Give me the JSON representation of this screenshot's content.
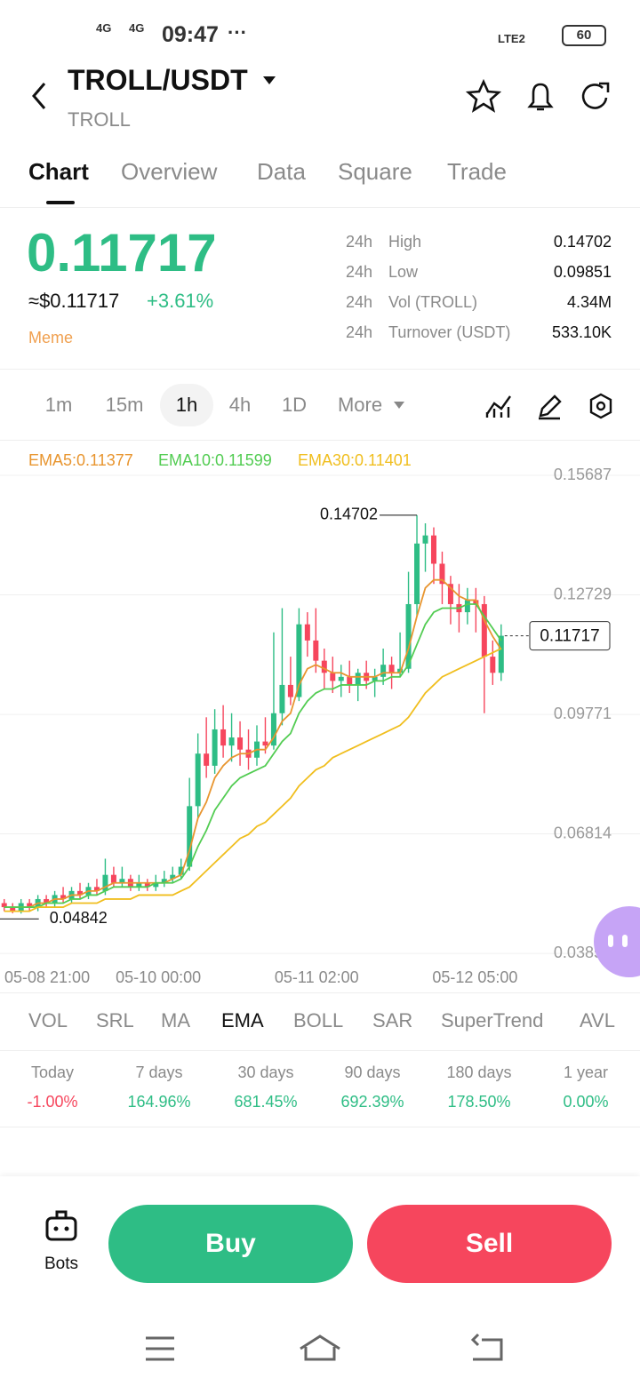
{
  "status_bar": {
    "net1": "4G",
    "net2": "4G",
    "time": "09:47",
    "lte": "LTE2",
    "battery": "60"
  },
  "header": {
    "pair": "TROLL/USDT",
    "base": "TROLL"
  },
  "tabs": [
    "Chart",
    "Overview",
    "Data",
    "Square",
    "Trade"
  ],
  "price": {
    "last": "0.11717",
    "usd": "≈$0.11717",
    "change": "+3.61%",
    "tag": "Meme"
  },
  "stats": [
    {
      "period": "24h",
      "label": "High",
      "value": "0.14702"
    },
    {
      "period": "24h",
      "label": "Low",
      "value": "0.09851"
    },
    {
      "period": "24h",
      "label": "Vol (TROLL)",
      "value": "4.34M"
    },
    {
      "period": "24h",
      "label": "Turnover (USDT)",
      "value": "533.10K"
    }
  ],
  "intervals": [
    "1m",
    "15m",
    "1h",
    "4h",
    "1D",
    "More"
  ],
  "chart_data": {
    "type": "candlestick",
    "ylim": [
      0.0355,
      0.16
    ],
    "yticks": [
      0.15687,
      0.12729,
      0.09771,
      0.06814,
      0.03855
    ],
    "xlim": [
      -0.5,
      60.5
    ],
    "xticks": [
      {
        "value": 5.1,
        "label": "05-08 21:00"
      },
      {
        "value": 18.3,
        "label": "05-10 00:00"
      },
      {
        "value": 37.1,
        "label": "05-11 02:00"
      },
      {
        "value": 55.9,
        "label": "05-12 05:00"
      }
    ],
    "up_color": "#2ebd85",
    "down_color": "#f6465d",
    "candles": [
      [
        0.051,
        0.052,
        0.049,
        0.05
      ],
      [
        0.05,
        0.051,
        0.0485,
        0.049
      ],
      [
        0.049,
        0.052,
        0.04842,
        0.051
      ],
      [
        0.051,
        0.052,
        0.049,
        0.05
      ],
      [
        0.05,
        0.053,
        0.049,
        0.052
      ],
      [
        0.052,
        0.053,
        0.05,
        0.051
      ],
      [
        0.051,
        0.054,
        0.05,
        0.053
      ],
      [
        0.053,
        0.055,
        0.051,
        0.052
      ],
      [
        0.052,
        0.055,
        0.051,
        0.054
      ],
      [
        0.054,
        0.056,
        0.052,
        0.053
      ],
      [
        0.053,
        0.056,
        0.052,
        0.055
      ],
      [
        0.055,
        0.057,
        0.053,
        0.054
      ],
      [
        0.054,
        0.062,
        0.053,
        0.058
      ],
      [
        0.058,
        0.06,
        0.055,
        0.056
      ],
      [
        0.056,
        0.06,
        0.055,
        0.057
      ],
      [
        0.057,
        0.058,
        0.054,
        0.055
      ],
      [
        0.055,
        0.058,
        0.054,
        0.056
      ],
      [
        0.056,
        0.057,
        0.054,
        0.055
      ],
      [
        0.055,
        0.058,
        0.054,
        0.056
      ],
      [
        0.056,
        0.059,
        0.055,
        0.057
      ],
      [
        0.057,
        0.06,
        0.056,
        0.058
      ],
      [
        0.058,
        0.062,
        0.057,
        0.06
      ],
      [
        0.06,
        0.082,
        0.059,
        0.075
      ],
      [
        0.075,
        0.093,
        0.072,
        0.088
      ],
      [
        0.088,
        0.097,
        0.082,
        0.085
      ],
      [
        0.085,
        0.099,
        0.083,
        0.094
      ],
      [
        0.094,
        0.1,
        0.087,
        0.09
      ],
      [
        0.09,
        0.098,
        0.086,
        0.092
      ],
      [
        0.092,
        0.096,
        0.085,
        0.089
      ],
      [
        0.089,
        0.094,
        0.084,
        0.087
      ],
      [
        0.087,
        0.095,
        0.085,
        0.091
      ],
      [
        0.091,
        0.097,
        0.088,
        0.09
      ],
      [
        0.09,
        0.118,
        0.089,
        0.098
      ],
      [
        0.098,
        0.124,
        0.095,
        0.105
      ],
      [
        0.105,
        0.112,
        0.1,
        0.102
      ],
      [
        0.102,
        0.124,
        0.101,
        0.12
      ],
      [
        0.12,
        0.123,
        0.112,
        0.116
      ],
      [
        0.116,
        0.124,
        0.108,
        0.111
      ],
      [
        0.111,
        0.114,
        0.104,
        0.108
      ],
      [
        0.108,
        0.112,
        0.103,
        0.106
      ],
      [
        0.106,
        0.11,
        0.102,
        0.107
      ],
      [
        0.107,
        0.111,
        0.103,
        0.105
      ],
      [
        0.105,
        0.109,
        0.101,
        0.108
      ],
      [
        0.108,
        0.111,
        0.104,
        0.106
      ],
      [
        0.106,
        0.109,
        0.102,
        0.107
      ],
      [
        0.107,
        0.114,
        0.105,
        0.11
      ],
      [
        0.11,
        0.112,
        0.104,
        0.108
      ],
      [
        0.108,
        0.118,
        0.107,
        0.109
      ],
      [
        0.109,
        0.133,
        0.108,
        0.125
      ],
      [
        0.125,
        0.14702,
        0.122,
        0.14
      ],
      [
        0.14,
        0.145,
        0.133,
        0.142
      ],
      [
        0.142,
        0.144,
        0.13,
        0.135
      ],
      [
        0.135,
        0.138,
        0.125,
        0.13
      ],
      [
        0.13,
        0.132,
        0.12,
        0.125
      ],
      [
        0.125,
        0.13,
        0.118,
        0.123
      ],
      [
        0.123,
        0.129,
        0.12,
        0.126
      ],
      [
        0.126,
        0.129,
        0.118,
        0.125
      ],
      [
        0.125,
        0.127,
        0.098,
        0.112
      ],
      [
        0.112,
        0.116,
        0.105,
        0.108
      ],
      [
        0.108,
        0.12,
        0.106,
        0.11717
      ]
    ],
    "series": [
      {
        "name": "EMA5",
        "label": "EMA5:0.11377",
        "color": "#e8952f",
        "values": [
          0.05,
          0.05,
          0.05,
          0.05,
          0.051,
          0.051,
          0.052,
          0.052,
          0.053,
          0.053,
          0.054,
          0.054,
          0.055,
          0.056,
          0.056,
          0.056,
          0.056,
          0.056,
          0.056,
          0.056,
          0.057,
          0.058,
          0.064,
          0.072,
          0.076,
          0.082,
          0.085,
          0.087,
          0.088,
          0.088,
          0.089,
          0.089,
          0.092,
          0.096,
          0.098,
          0.105,
          0.109,
          0.11,
          0.109,
          0.108,
          0.108,
          0.107,
          0.107,
          0.107,
          0.107,
          0.108,
          0.108,
          0.108,
          0.114,
          0.122,
          0.129,
          0.131,
          0.131,
          0.129,
          0.127,
          0.126,
          0.126,
          0.121,
          0.117,
          0.11377
        ]
      },
      {
        "name": "EMA10",
        "label": "EMA10:0.11599",
        "color": "#52cc52",
        "values": [
          0.05,
          0.05,
          0.05,
          0.05,
          0.05,
          0.051,
          0.051,
          0.051,
          0.052,
          0.052,
          0.053,
          0.053,
          0.054,
          0.055,
          0.055,
          0.055,
          0.055,
          0.055,
          0.056,
          0.056,
          0.056,
          0.057,
          0.06,
          0.065,
          0.069,
          0.074,
          0.077,
          0.08,
          0.082,
          0.083,
          0.084,
          0.085,
          0.088,
          0.091,
          0.093,
          0.098,
          0.101,
          0.103,
          0.104,
          0.104,
          0.105,
          0.105,
          0.105,
          0.105,
          0.106,
          0.106,
          0.107,
          0.107,
          0.11,
          0.115,
          0.12,
          0.123,
          0.124,
          0.124,
          0.124,
          0.125,
          0.125,
          0.122,
          0.119,
          0.11599
        ]
      },
      {
        "name": "EMA30",
        "label": "EMA30:0.11401",
        "color": "#f0be1e",
        "values": [
          0.049,
          0.049,
          0.049,
          0.049,
          0.05,
          0.05,
          0.05,
          0.05,
          0.051,
          0.051,
          0.051,
          0.051,
          0.052,
          0.052,
          0.052,
          0.052,
          0.053,
          0.053,
          0.053,
          0.053,
          0.053,
          0.054,
          0.055,
          0.057,
          0.059,
          0.061,
          0.063,
          0.065,
          0.067,
          0.068,
          0.07,
          0.071,
          0.073,
          0.075,
          0.077,
          0.08,
          0.082,
          0.084,
          0.085,
          0.087,
          0.088,
          0.089,
          0.09,
          0.091,
          0.092,
          0.093,
          0.094,
          0.095,
          0.097,
          0.1,
          0.103,
          0.105,
          0.107,
          0.108,
          0.109,
          0.11,
          0.111,
          0.112,
          0.113,
          0.11401
        ]
      }
    ],
    "high": 0.14702,
    "high_index": 49,
    "low": 0.04842,
    "low_index": 2,
    "last": 0.11717
  },
  "indicators": [
    "VOL",
    "SRL",
    "MA",
    "EMA",
    "BOLL",
    "SAR",
    "SuperTrend",
    "AVL"
  ],
  "performance": [
    {
      "period": "Today",
      "change": "-1.00%"
    },
    {
      "period": "7 days",
      "change": "164.96%"
    },
    {
      "period": "30 days",
      "change": "681.45%"
    },
    {
      "period": "90 days",
      "change": "692.39%"
    },
    {
      "period": "180 days",
      "change": "178.50%"
    },
    {
      "period": "1 year",
      "change": "0.00%"
    }
  ],
  "actions": {
    "bots": "Bots",
    "buy": "Buy",
    "sell": "Sell"
  }
}
